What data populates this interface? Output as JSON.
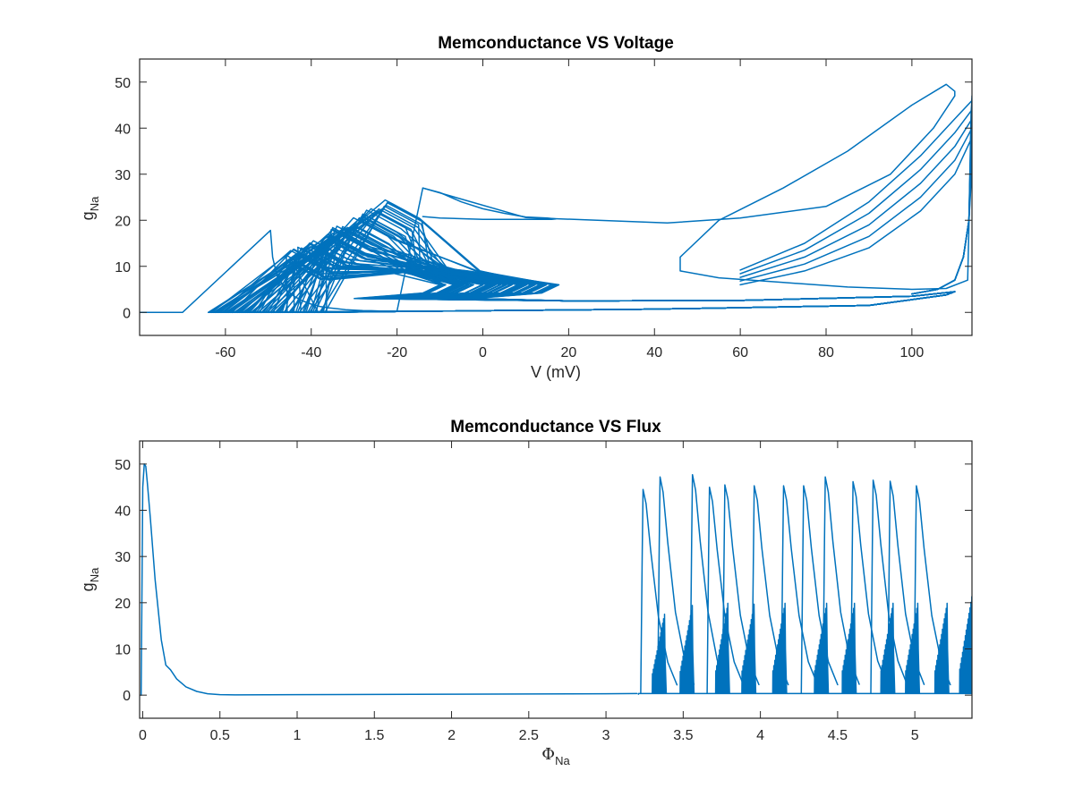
{
  "colors": {
    "trace": "#0072BD",
    "axis": "#262626",
    "background": "#ffffff"
  },
  "chart_data": [
    {
      "type": "line",
      "title": "Memconductance VS Voltage",
      "xlabel": "V (mV)",
      "ylabel_main": "g",
      "ylabel_sub": "Na",
      "xlim": [
        -80,
        114
      ],
      "ylim": [
        -5,
        55
      ],
      "xticks": [
        -60,
        -40,
        -20,
        0,
        20,
        40,
        60,
        80,
        100
      ],
      "xtick_labels": [
        "-60",
        "-40",
        "-20",
        "0",
        "20",
        "40",
        "60",
        "80",
        "100"
      ],
      "yticks": [
        0,
        10,
        20,
        30,
        40,
        50
      ],
      "ytick_labels": [
        "0",
        "10",
        "20",
        "30",
        "40",
        "50"
      ],
      "grid": false,
      "series": [
        {
          "x": [
            -80,
            -70,
            -49.5,
            -49,
            -48,
            -46,
            -44,
            -42,
            -40,
            -38,
            -36,
            -34,
            -32,
            -30,
            -28,
            -26,
            -24,
            -20,
            -14,
            -10,
            -5,
            0,
            5,
            10,
            15,
            17,
            16,
            10,
            0,
            -10,
            -14
          ],
          "y": [
            0,
            0,
            17.8,
            12,
            8,
            5,
            3.5,
            2.5,
            1.8,
            1.3,
            1,
            0.8,
            0.6,
            0.5,
            0.4,
            0.35,
            0.3,
            0.3,
            27,
            26,
            24,
            22.5,
            21.5,
            20.7,
            20.5,
            20.3,
            20.2,
            20.2,
            20.2,
            20.5,
            20.8
          ]
        },
        {
          "x": [
            -14,
            10,
            43,
            60,
            80,
            95,
            105,
            110,
            110,
            108,
            100,
            85,
            70,
            55,
            46,
            46,
            55,
            70,
            85,
            100,
            108,
            113,
            114
          ],
          "y": [
            27,
            20.6,
            19.4,
            20.5,
            23,
            30,
            40,
            47,
            48,
            49.5,
            45,
            35,
            27,
            20,
            12,
            9,
            7.5,
            6.5,
            5.5,
            5,
            5.2,
            7,
            47
          ]
        }
      ]
    },
    {
      "type": "line",
      "title": "Memconductance VS Flux",
      "xlabel_main": "Φ",
      "xlabel_sub": "Na",
      "ylabel_main": "g",
      "ylabel_sub": "Na",
      "xlim": [
        -0.02,
        5.37
      ],
      "ylim": [
        -5,
        55
      ],
      "xticks": [
        0,
        0.5,
        1,
        1.5,
        2,
        2.5,
        3,
        3.5,
        4,
        4.5,
        5
      ],
      "xtick_labels": [
        "0",
        "0.5",
        "1",
        "1.5",
        "2",
        "2.5",
        "3",
        "3.5",
        "4",
        "4.5",
        "5"
      ],
      "yticks": [
        0,
        10,
        20,
        30,
        40,
        50
      ],
      "ytick_labels": [
        "0",
        "10",
        "20",
        "30",
        "40",
        "50"
      ],
      "grid": false,
      "series": [
        {
          "x": [
            -0.01,
            -0.005,
            0.0,
            0.01,
            0.02,
            0.03,
            0.05,
            0.08,
            0.12,
            0.15,
            0.18,
            0.22,
            0.28,
            0.35,
            0.42,
            0.5,
            0.6,
            1.0,
            1.5,
            2.0,
            2.5,
            3.0,
            3.2
          ],
          "y": [
            0,
            22,
            45,
            50,
            49.5,
            46,
            38,
            25,
            12,
            6.5,
            5.5,
            3.5,
            1.8,
            0.8,
            0.3,
            0.1,
            0.05,
            0.1,
            0.15,
            0.2,
            0.25,
            0.3,
            0.35
          ]
        }
      ],
      "spike_peaks": [
        {
          "x": 3.24,
          "y": 44.5
        },
        {
          "x": 3.35,
          "y": 47.2
        },
        {
          "x": 3.56,
          "y": 47.7
        },
        {
          "x": 3.67,
          "y": 45
        },
        {
          "x": 3.77,
          "y": 45.5
        },
        {
          "x": 3.96,
          "y": 45.3
        },
        {
          "x": 4.15,
          "y": 45.3
        },
        {
          "x": 4.28,
          "y": 45.3
        },
        {
          "x": 4.42,
          "y": 47.2
        },
        {
          "x": 4.6,
          "y": 46.2
        },
        {
          "x": 4.73,
          "y": 46.5
        },
        {
          "x": 4.84,
          "y": 46.3
        },
        {
          "x": 5.01,
          "y": 45.3
        }
      ],
      "secondary_peaks": [
        {
          "x": 3.37,
          "y": 18.5
        },
        {
          "x": 3.55,
          "y": 20.5
        },
        {
          "x": 3.78,
          "y": 21
        },
        {
          "x": 3.95,
          "y": 20.8
        },
        {
          "x": 4.15,
          "y": 21
        },
        {
          "x": 4.42,
          "y": 21
        },
        {
          "x": 4.6,
          "y": 21
        },
        {
          "x": 4.85,
          "y": 21
        },
        {
          "x": 5.01,
          "y": 21
        },
        {
          "x": 5.2,
          "y": 21
        },
        {
          "x": 5.36,
          "y": 22.5
        }
      ]
    }
  ]
}
